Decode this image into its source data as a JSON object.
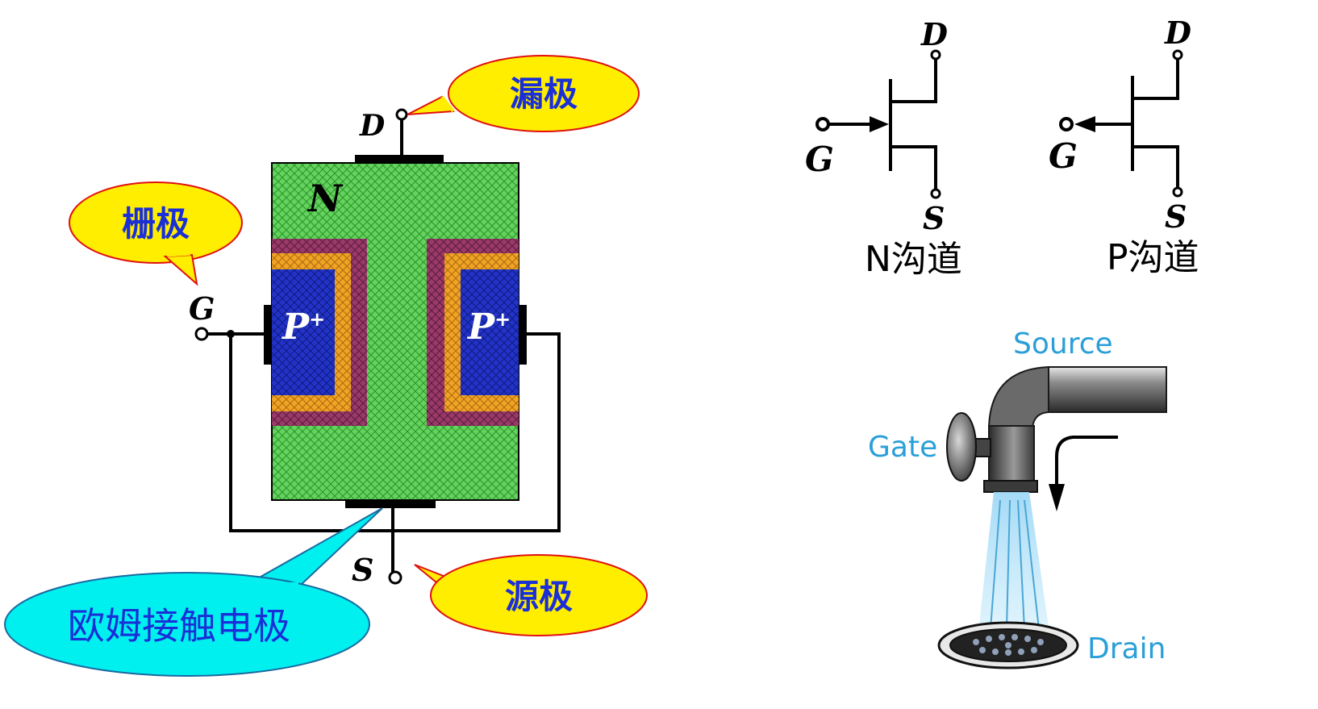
{
  "jfet_structure": {
    "channel_label": "N",
    "gate_region_label": "P",
    "gate_region_superscript": "+",
    "terminal_d": "D",
    "terminal_g": "G",
    "terminal_s": "S",
    "callout_drain": "漏极",
    "callout_gate": "栅极",
    "callout_source": "源极",
    "callout_ohmic": "欧姆接触电极",
    "colors": {
      "channel_green": "#5fd35a",
      "outer_maroon": "#9b3a6a",
      "middle_orange": "#f0a020",
      "inner_blue": "#1f2fc0",
      "callout_yellow": "#ffee00",
      "callout_border": "#e01010",
      "callout_cyan": "#00f0f0",
      "callout_text_blue": "#1a2fd6"
    }
  },
  "symbols": {
    "n_channel": {
      "d": "D",
      "g": "G",
      "s": "S",
      "caption": "N沟道"
    },
    "p_channel": {
      "d": "D",
      "g": "G",
      "s": "S",
      "caption": "P沟道"
    }
  },
  "faucet": {
    "source_label": "Source",
    "gate_label": "Gate",
    "drain_label": "Drain",
    "label_color": "#2a9fd8"
  }
}
